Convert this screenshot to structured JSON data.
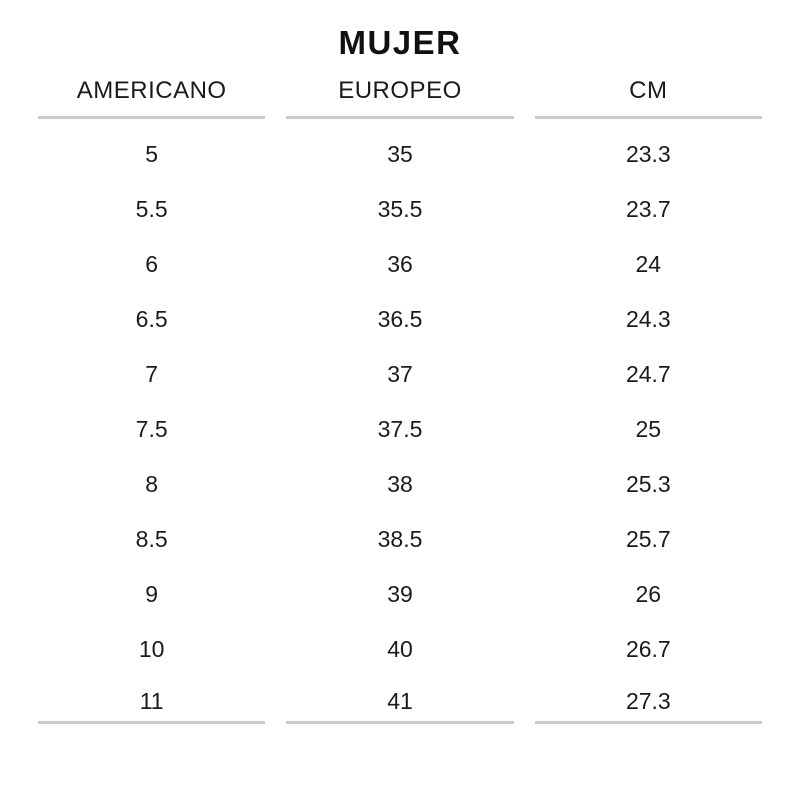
{
  "chart_data": {
    "type": "table",
    "title": "MUJER",
    "columns": [
      "AMERICANO",
      "EUROPEO",
      "CM"
    ],
    "rows": [
      [
        "5",
        "35",
        "23.3"
      ],
      [
        "5.5",
        "35.5",
        "23.7"
      ],
      [
        "6",
        "36",
        "24"
      ],
      [
        "6.5",
        "36.5",
        "24.3"
      ],
      [
        "7",
        "37",
        "24.7"
      ],
      [
        "7.5",
        "37.5",
        "25"
      ],
      [
        "8",
        "38",
        "25.3"
      ],
      [
        "8.5",
        "38.5",
        "25.7"
      ],
      [
        "9",
        "39",
        "26"
      ],
      [
        "10",
        "40",
        "26.7"
      ],
      [
        "11",
        "41",
        "27.3"
      ]
    ],
    "layout": {
      "header_rule": true,
      "bottom_rule": true,
      "grid": "off"
    }
  },
  "colors": {
    "text": "#1b1b1b",
    "title": "#111111",
    "rule": "#cccccc",
    "background": "#ffffff"
  }
}
